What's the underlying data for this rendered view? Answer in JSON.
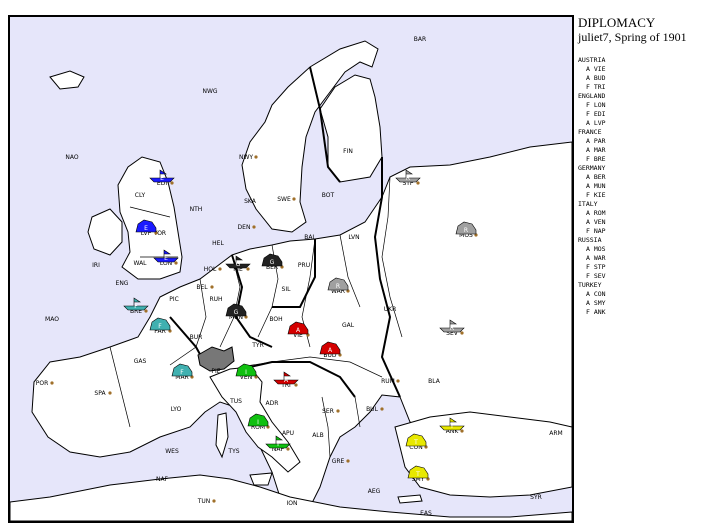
{
  "header": {
    "title": "DIPLOMACY",
    "subtitle": "juliet7, Spring of 1901"
  },
  "powers": [
    {
      "name": "AUSTRIA",
      "color": "#d40000",
      "units": [
        "A VIE",
        "A BUD",
        "F TRI"
      ]
    },
    {
      "name": "ENGLAND",
      "color": "#1a1aff",
      "units": [
        "F LON",
        "F EDI",
        "A LVP"
      ]
    },
    {
      "name": "FRANCE",
      "color": "#40b0b0",
      "units": [
        "A PAR",
        "A MAR",
        "F BRE"
      ]
    },
    {
      "name": "GERMANY",
      "color": "#222222",
      "units": [
        "A BER",
        "A MUN",
        "F KIE"
      ]
    },
    {
      "name": "ITALY",
      "color": "#10c010",
      "units": [
        "A ROM",
        "A VEN",
        "F NAP"
      ]
    },
    {
      "name": "RUSSIA",
      "color": "#a0a0a0",
      "units": [
        "A MOS",
        "A WAR",
        "F STP",
        "F SEV"
      ]
    },
    {
      "name": "TURKEY",
      "color": "#e8e800",
      "units": [
        "A CON",
        "A SMY",
        "F ANK"
      ]
    }
  ],
  "provinces": [
    {
      "abbr": "BAR"
    },
    {
      "abbr": "NWG"
    },
    {
      "abbr": "NAO"
    },
    {
      "abbr": "NWY"
    },
    {
      "abbr": "FIN"
    },
    {
      "abbr": "STP"
    },
    {
      "abbr": "EDI"
    },
    {
      "abbr": "CLY"
    },
    {
      "abbr": "NTH"
    },
    {
      "abbr": "SKA"
    },
    {
      "abbr": "SWE"
    },
    {
      "abbr": "BOT"
    },
    {
      "abbr": "MOS"
    },
    {
      "abbr": "LVP"
    },
    {
      "abbr": "YOR"
    },
    {
      "abbr": "DEN"
    },
    {
      "abbr": "LVN"
    },
    {
      "abbr": "HEL"
    },
    {
      "abbr": "BAL"
    },
    {
      "abbr": "IRI"
    },
    {
      "abbr": "WAL"
    },
    {
      "abbr": "LON"
    },
    {
      "abbr": "HOL"
    },
    {
      "abbr": "KIE"
    },
    {
      "abbr": "BER"
    },
    {
      "abbr": "PRU"
    },
    {
      "abbr": "ENG"
    },
    {
      "abbr": "BEL"
    },
    {
      "abbr": "WAR"
    },
    {
      "abbr": "SIL"
    },
    {
      "abbr": "RUH"
    },
    {
      "abbr": "PIC"
    },
    {
      "abbr": "BRE"
    },
    {
      "abbr": "MAO"
    },
    {
      "abbr": "PAR"
    },
    {
      "abbr": "MUN"
    },
    {
      "abbr": "BOH"
    },
    {
      "abbr": "UKR"
    },
    {
      "abbr": "GAL"
    },
    {
      "abbr": "SEV"
    },
    {
      "abbr": "BUR"
    },
    {
      "abbr": "TYR"
    },
    {
      "abbr": "VIE"
    },
    {
      "abbr": "BUD"
    },
    {
      "abbr": "GAS"
    },
    {
      "abbr": "MAR"
    },
    {
      "abbr": "PIE"
    },
    {
      "abbr": "VEN"
    },
    {
      "abbr": "TRI"
    },
    {
      "abbr": "RUM"
    },
    {
      "abbr": "POR"
    },
    {
      "abbr": "SPA"
    },
    {
      "abbr": "BLA"
    },
    {
      "abbr": "LYO"
    },
    {
      "abbr": "TUS"
    },
    {
      "abbr": "ADR"
    },
    {
      "abbr": "SER"
    },
    {
      "abbr": "BUL"
    },
    {
      "abbr": "ROM"
    },
    {
      "abbr": "APU"
    },
    {
      "abbr": "ALB"
    },
    {
      "abbr": "CON"
    },
    {
      "abbr": "ANK"
    },
    {
      "abbr": "ARM"
    },
    {
      "abbr": "WES"
    },
    {
      "abbr": "TYS"
    },
    {
      "abbr": "NAP"
    },
    {
      "abbr": "GRE"
    },
    {
      "abbr": "NAF"
    },
    {
      "abbr": "AEG"
    },
    {
      "abbr": "SMY"
    },
    {
      "abbr": "SYR"
    },
    {
      "abbr": "TUN"
    },
    {
      "abbr": "ION"
    },
    {
      "abbr": "EAS"
    }
  ],
  "map_units": [
    {
      "power": "E",
      "type": "F",
      "at": "EDI"
    },
    {
      "power": "E",
      "type": "A",
      "at": "LVP"
    },
    {
      "power": "E",
      "type": "F",
      "at": "LON"
    },
    {
      "power": "F",
      "type": "F",
      "at": "BRE"
    },
    {
      "power": "F",
      "type": "A",
      "at": "PAR"
    },
    {
      "power": "F",
      "type": "A",
      "at": "MAR"
    },
    {
      "power": "G",
      "type": "F",
      "at": "KIE"
    },
    {
      "power": "G",
      "type": "A",
      "at": "BER"
    },
    {
      "power": "G",
      "type": "A",
      "at": "MUN"
    },
    {
      "power": "A",
      "type": "A",
      "at": "VIE"
    },
    {
      "power": "A",
      "type": "A",
      "at": "BUD"
    },
    {
      "power": "A",
      "type": "F",
      "at": "TRI"
    },
    {
      "power": "I",
      "type": "A",
      "at": "VEN"
    },
    {
      "power": "I",
      "type": "A",
      "at": "ROM"
    },
    {
      "power": "I",
      "type": "F",
      "at": "NAP"
    },
    {
      "power": "R",
      "type": "F",
      "at": "STP"
    },
    {
      "power": "R",
      "type": "A",
      "at": "MOS"
    },
    {
      "power": "R",
      "type": "A",
      "at": "WAR"
    },
    {
      "power": "R",
      "type": "F",
      "at": "SEV"
    },
    {
      "power": "T",
      "type": "F",
      "at": "ANK"
    },
    {
      "power": "T",
      "type": "A",
      "at": "CON"
    },
    {
      "power": "T",
      "type": "A",
      "at": "SMY"
    }
  ],
  "colors": {
    "sea": "#e6e6fa",
    "land": "#ffffff",
    "neutral_switzerland": "#777777",
    "supply_center": "#a0702a"
  }
}
